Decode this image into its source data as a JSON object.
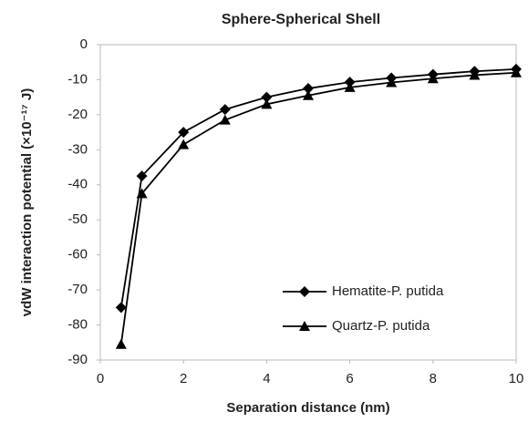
{
  "chart_data": {
    "type": "line",
    "title": "Sphere-Spherical Shell",
    "xlabel": "Separation distance (nm)",
    "ylabel": "vdW interaction potential (×10⁻¹⁷ J)",
    "x": [
      0.5,
      1,
      2,
      3,
      4,
      5,
      6,
      7,
      8,
      9,
      10
    ],
    "series": [
      {
        "name": "Hematite-P. putida",
        "color": "#000000",
        "marker": "diamond",
        "values": [
          -75,
          -37.5,
          -25,
          -18.5,
          -15,
          -12.5,
          -10.7,
          -9.5,
          -8.5,
          -7.6,
          -7
        ]
      },
      {
        "name": "Quartz-P. putida",
        "color": "#000000",
        "marker": "triangle",
        "values": [
          -85.5,
          -42.5,
          -28.5,
          -21.5,
          -17,
          -14.5,
          -12.2,
          -10.8,
          -9.7,
          -8.7,
          -8
        ]
      }
    ],
    "xlim": [
      0,
      10
    ],
    "xticks": [
      0,
      2,
      4,
      6,
      8,
      10
    ],
    "ylim": [
      -90,
      0
    ],
    "yticks": [
      -90,
      -80,
      -70,
      -60,
      -50,
      -40,
      -30,
      -20,
      -10,
      0
    ],
    "grid": false,
    "legend": "lower right"
  }
}
